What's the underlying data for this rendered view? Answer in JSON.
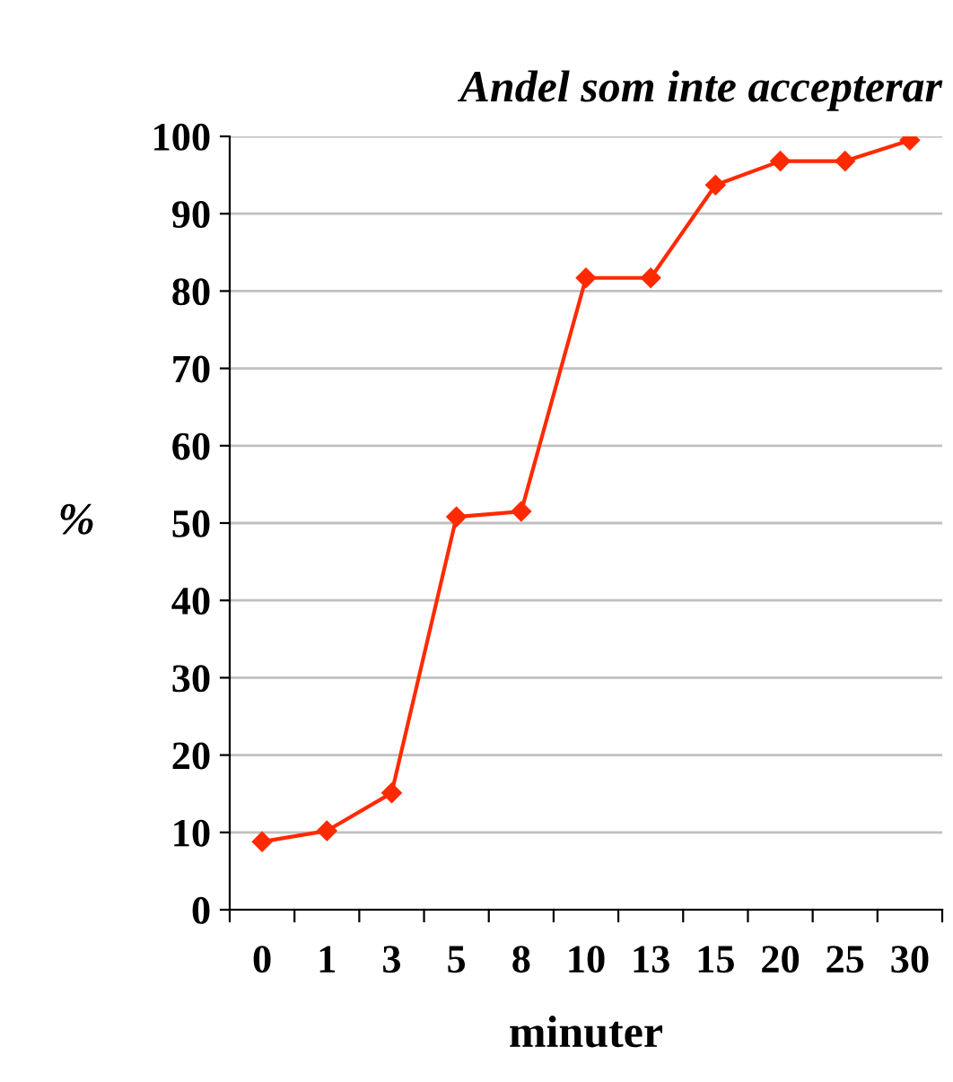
{
  "chart_data": {
    "type": "line",
    "title": "Andel som inte accepterar",
    "xlabel": "minuter",
    "ylabel": "%",
    "categories": [
      "0",
      "1",
      "3",
      "5",
      "8",
      "10",
      "13",
      "15",
      "20",
      "25",
      "30"
    ],
    "series": [
      {
        "color": "#ff2a00",
        "values": [
          8.8,
          10.2,
          15.1,
          50.8,
          51.5,
          81.7,
          81.7,
          93.7,
          96.8,
          96.8,
          99.5
        ]
      }
    ],
    "ylim": [
      0,
      100
    ],
    "yticks": [
      0,
      10,
      20,
      30,
      40,
      50,
      60,
      70,
      80,
      90,
      100
    ],
    "grid": "y",
    "marker": "diamond",
    "line_style": "solid"
  }
}
